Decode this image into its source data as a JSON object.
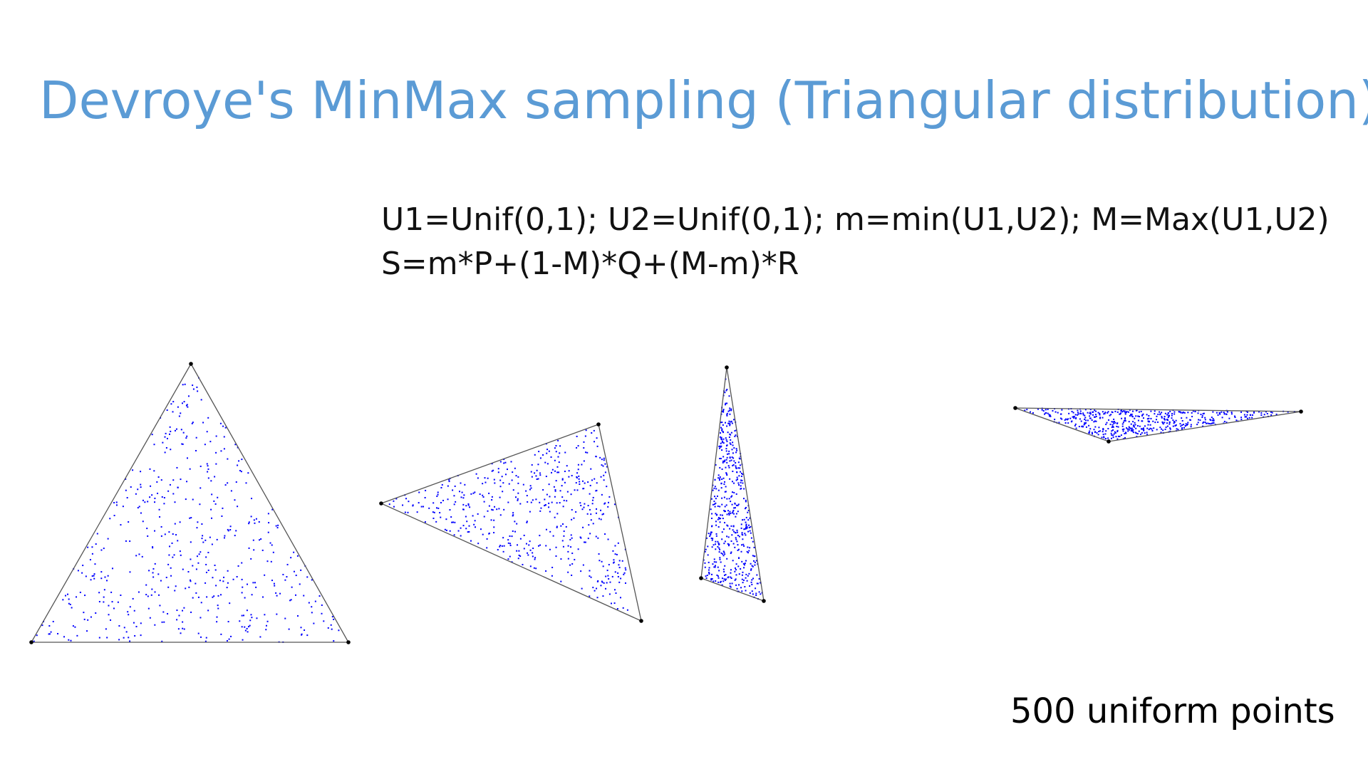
{
  "slide": {
    "title": "Devroye's MinMax sampling (Triangular distribution)",
    "formula_line1": "U1=Unif(0,1); U2=Unif(0,1); m=min(U1,U2); M=Max(U1,U2)",
    "formula_line2": "S=m*P+(1-M)*Q+(M-m)*R",
    "caption": "500 uniform points"
  },
  "figure": {
    "points_per_triangle": 500,
    "triangle_count": 4,
    "point_color": "#0000ff",
    "edge_color": "#555555",
    "vertex_color": "#000000",
    "title_color": "#5b9bd5"
  }
}
